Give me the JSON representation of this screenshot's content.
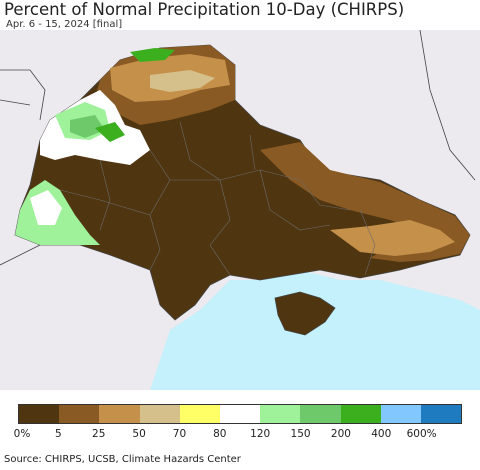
{
  "title": "Percent of Normal Precipitation 10-Day (CHIRPS)",
  "subtitle": "Apr. 6 - 15, 2024 [final]",
  "source": "Source: CHIRPS, UCSB, Climate Hazards Center",
  "colors": {
    "background_land": "#eceaee",
    "sea": "#c4f1fb",
    "dry_dark": "#4f3510",
    "dry_mid": "#8a5a24",
    "dry_light": "#c4904a",
    "dry_pale": "#d5bf8a",
    "normal": "#ffffff",
    "wet_light": "#9ff19a",
    "wet_mid": "#6ec96b",
    "wet_dark": "#3caf1f",
    "border_line": "#444444"
  },
  "legend": {
    "colors": [
      "#4f3510",
      "#8a5a24",
      "#c4904a",
      "#d5bf8a",
      "#ffff66",
      "#ffffff",
      "#9ff19a",
      "#6ec96b",
      "#3caf1f",
      "#82c8ff",
      "#1f7bbf"
    ],
    "tick_labels": [
      "0%",
      "5",
      "25",
      "50",
      "70",
      "80",
      "120",
      "150",
      "200",
      "400",
      "600%"
    ]
  }
}
